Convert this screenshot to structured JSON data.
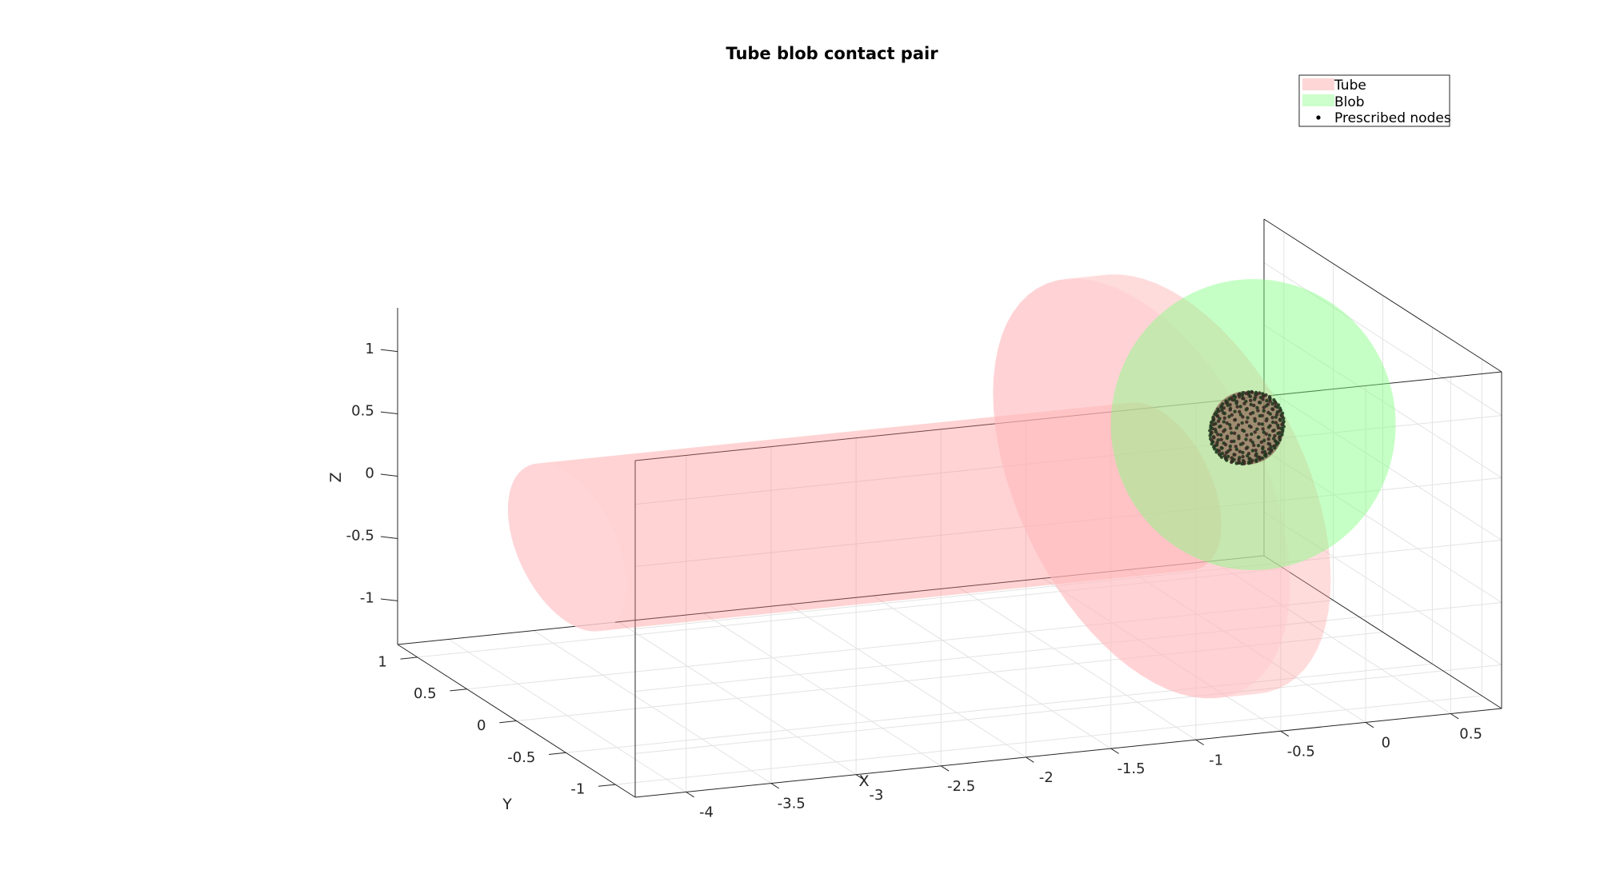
{
  "chart_data": {
    "type": "scatter",
    "title": "Tube blob contact pair",
    "xlabel": "X",
    "ylabel": "Y",
    "zlabel": "Z",
    "xlim": [
      -4.3,
      0.8
    ],
    "ylim": [
      -1.2,
      1.2
    ],
    "zlim": [
      -1.35,
      1.35
    ],
    "xticks": [
      -4,
      -3.5,
      -3,
      -2.5,
      -2,
      -1.5,
      -1,
      -0.5,
      0,
      0.5
    ],
    "yticks": [
      -1,
      -0.5,
      0,
      0.5,
      1
    ],
    "zticks": [
      -1,
      -0.5,
      0,
      0.5,
      1
    ],
    "grid": true,
    "legend_location": "top-right",
    "series": [
      {
        "name": "Tube",
        "kind": "surface",
        "color": "#ff8080",
        "alpha": 0.35,
        "x_start": -4.0,
        "x_end": -0.5,
        "radius": 0.6,
        "flange_x": -0.5,
        "flange_radius": 1.5
      },
      {
        "name": "Blob",
        "kind": "surface",
        "color": "#80ff80",
        "alpha": 0.45,
        "center": [
          0,
          0,
          0.4
        ],
        "radius": 1.2
      },
      {
        "name": "Prescribed nodes",
        "kind": "points",
        "color": "#000000",
        "center": [
          0,
          0,
          0.4
        ],
        "radius": 0.3,
        "count": 300
      }
    ]
  }
}
